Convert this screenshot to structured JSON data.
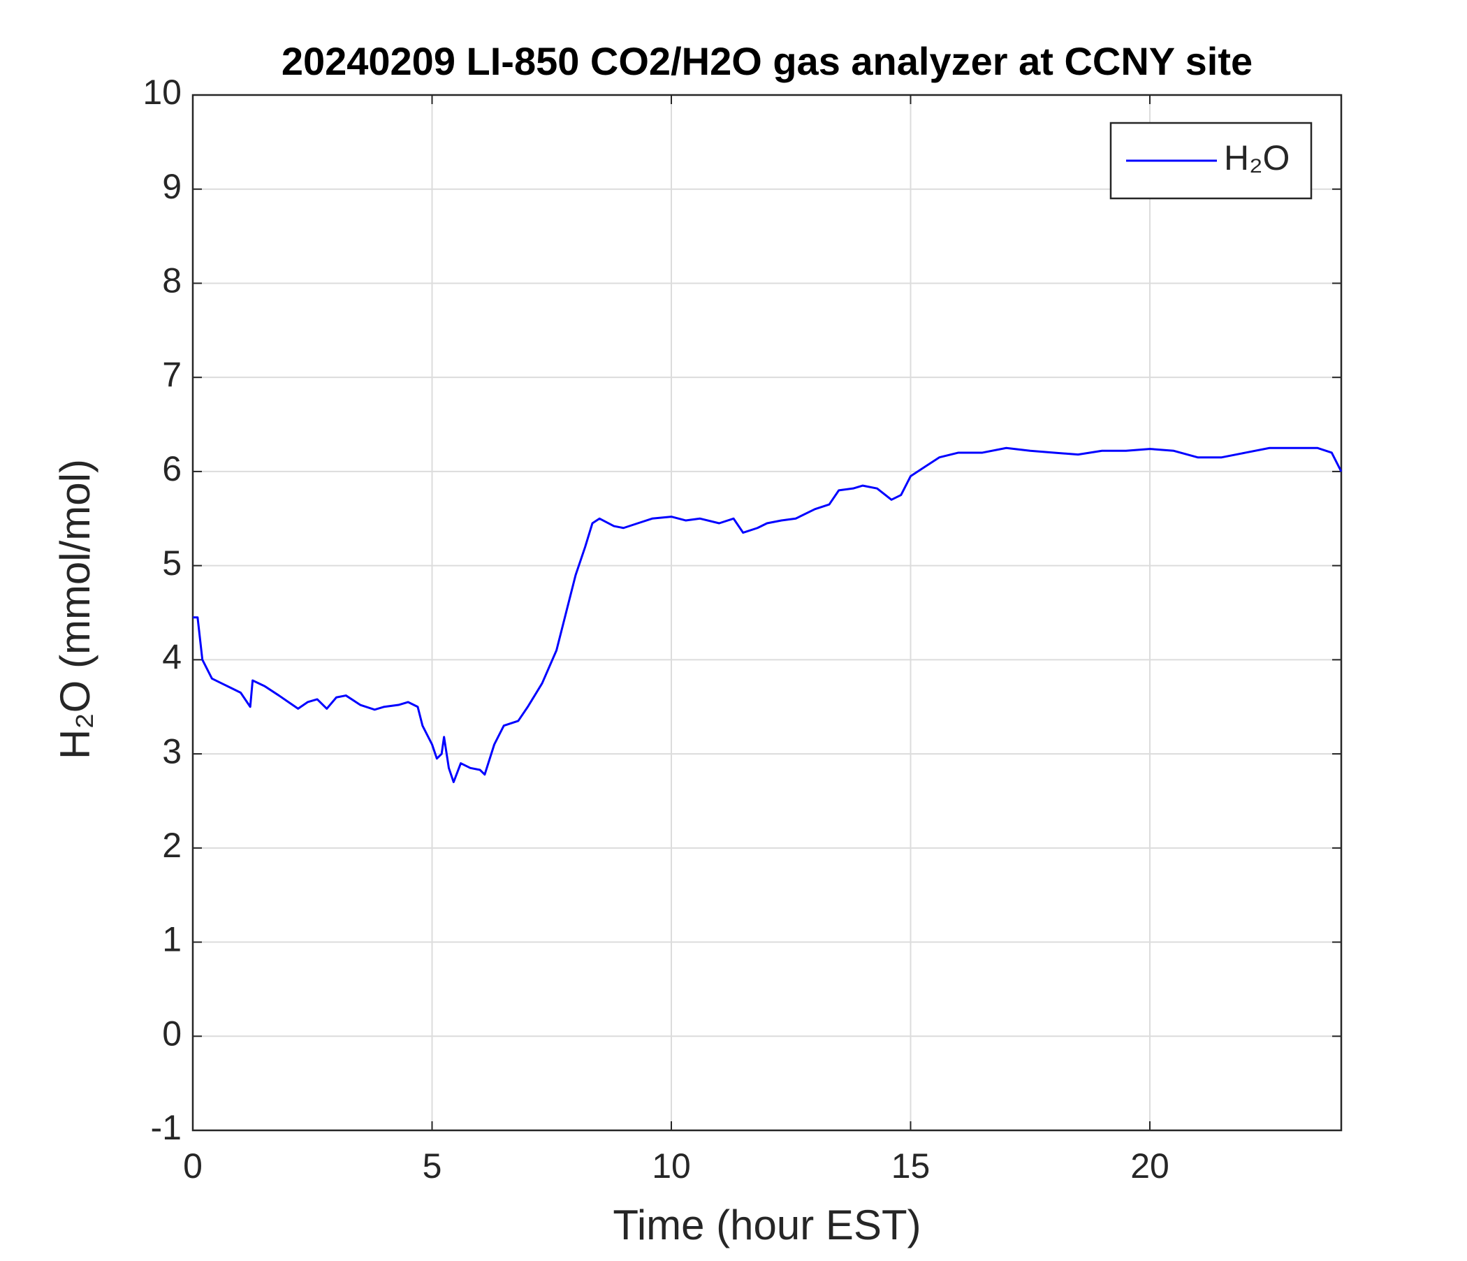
{
  "chart_data": {
    "type": "line",
    "title": "20240209 LI-850 CO2/H2O gas analyzer at CCNY site",
    "x_label": "Time (hour EST)",
    "y_label": "H₂O (mmol/mol)",
    "x": [
      0,
      0.1,
      0.2,
      0.4,
      0.6,
      0.8,
      1.0,
      1.2,
      1.25,
      1.5,
      1.8,
      2.0,
      2.2,
      2.4,
      2.6,
      2.8,
      3.0,
      3.2,
      3.5,
      3.8,
      4.0,
      4.3,
      4.5,
      4.7,
      4.8,
      5.0,
      5.1,
      5.2,
      5.25,
      5.35,
      5.45,
      5.6,
      5.8,
      6.0,
      6.1,
      6.3,
      6.5,
      6.8,
      7.0,
      7.3,
      7.6,
      7.8,
      8.0,
      8.2,
      8.35,
      8.5,
      8.8,
      9.0,
      9.3,
      9.6,
      10.0,
      10.3,
      10.6,
      11.0,
      11.3,
      11.5,
      11.8,
      12.0,
      12.3,
      12.6,
      13.0,
      13.3,
      13.5,
      13.8,
      14.0,
      14.3,
      14.6,
      14.8,
      15.0,
      15.3,
      15.6,
      16.0,
      16.5,
      17.0,
      17.5,
      18.0,
      18.5,
      19.0,
      19.5,
      20.0,
      20.5,
      21.0,
      21.5,
      22.0,
      22.5,
      23.0,
      23.5,
      23.8,
      24
    ],
    "series": [
      {
        "name": "H₂O",
        "color": "#0000ff",
        "values": [
          4.45,
          4.45,
          4.0,
          3.8,
          3.75,
          3.7,
          3.65,
          3.5,
          3.78,
          3.72,
          3.62,
          3.55,
          3.48,
          3.55,
          3.58,
          3.48,
          3.6,
          3.62,
          3.52,
          3.47,
          3.5,
          3.52,
          3.55,
          3.5,
          3.3,
          3.1,
          2.95,
          3.0,
          3.18,
          2.85,
          2.7,
          2.9,
          2.85,
          2.83,
          2.78,
          3.1,
          3.3,
          3.35,
          3.5,
          3.75,
          4.1,
          4.5,
          4.9,
          5.2,
          5.45,
          5.5,
          5.42,
          5.4,
          5.45,
          5.5,
          5.52,
          5.48,
          5.5,
          5.45,
          5.5,
          5.35,
          5.4,
          5.45,
          5.48,
          5.5,
          5.6,
          5.65,
          5.8,
          5.82,
          5.85,
          5.82,
          5.7,
          5.75,
          5.95,
          6.05,
          6.15,
          6.2,
          6.2,
          6.25,
          6.22,
          6.2,
          6.18,
          6.22,
          6.22,
          6.24,
          6.22,
          6.15,
          6.15,
          6.2,
          6.25,
          6.25,
          6.25,
          6.2,
          6.0
        ]
      }
    ],
    "xlim": [
      0,
      24
    ],
    "xticks": [
      0,
      5,
      10,
      15,
      20
    ],
    "ylim": [
      -1,
      10
    ],
    "yticks": [
      -1,
      0,
      1,
      2,
      3,
      4,
      5,
      6,
      7,
      8,
      9,
      10
    ],
    "grid": true,
    "legend": "northeast"
  }
}
